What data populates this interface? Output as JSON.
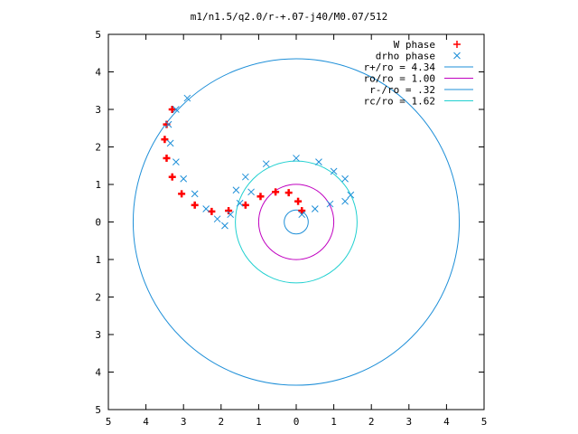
{
  "chart_data": {
    "type": "scatter",
    "title": "m1/n1.5/q2.0/r-+.07-j40/M0.07/512",
    "xlim": [
      -5,
      5
    ],
    "ylim": [
      -5,
      5
    ],
    "xticks": [
      -5,
      -4,
      -3,
      -2,
      -1,
      0,
      1,
      2,
      3,
      4,
      5
    ],
    "yticks": [
      -5,
      -4,
      -3,
      -2,
      -1,
      0,
      1,
      2,
      3,
      4,
      5
    ],
    "xtick_labels": [
      "5",
      "4",
      "3",
      "2",
      "1",
      "0",
      "1",
      "2",
      "3",
      "4",
      "5"
    ],
    "ytick_labels": [
      "5",
      "4",
      "3",
      "2",
      "1",
      "0",
      "1",
      "2",
      "3",
      "4",
      "5"
    ],
    "grid": false,
    "legend_position": "top-right",
    "series": [
      {
        "name": "W phase",
        "marker": "+",
        "color": "#ff0000",
        "points": [
          [
            -3.3,
            3.0
          ],
          [
            -3.45,
            2.6
          ],
          [
            -3.5,
            2.2
          ],
          [
            -3.45,
            1.7
          ],
          [
            -3.3,
            1.2
          ],
          [
            -3.05,
            0.75
          ],
          [
            -2.7,
            0.45
          ],
          [
            -2.25,
            0.28
          ],
          [
            -1.8,
            0.3
          ],
          [
            -1.35,
            0.45
          ],
          [
            -0.95,
            0.68
          ],
          [
            -0.55,
            0.8
          ],
          [
            -0.2,
            0.78
          ],
          [
            0.05,
            0.55
          ],
          [
            0.15,
            0.3
          ]
        ]
      },
      {
        "name": "drho phase",
        "marker": "x",
        "color": "#1e8fd8",
        "points": [
          [
            -2.9,
            3.3
          ],
          [
            -3.2,
            3.0
          ],
          [
            -3.4,
            2.6
          ],
          [
            -3.35,
            2.1
          ],
          [
            -3.2,
            1.6
          ],
          [
            -3.0,
            1.15
          ],
          [
            -2.7,
            0.75
          ],
          [
            -2.4,
            0.35
          ],
          [
            -2.1,
            0.08
          ],
          [
            -1.9,
            -0.1
          ],
          [
            -1.75,
            0.2
          ],
          [
            -1.5,
            0.5
          ],
          [
            -1.2,
            0.8
          ],
          [
            -0.8,
            1.55
          ],
          [
            -1.35,
            1.2
          ],
          [
            -1.6,
            0.85
          ],
          [
            0.0,
            1.7
          ],
          [
            0.6,
            1.6
          ],
          [
            1.0,
            1.35
          ],
          [
            1.3,
            1.15
          ],
          [
            1.45,
            0.72
          ],
          [
            1.3,
            0.55
          ],
          [
            0.9,
            0.48
          ],
          [
            0.5,
            0.35
          ],
          [
            0.15,
            0.2
          ]
        ]
      }
    ],
    "circles": [
      {
        "name": "r+/ro = 4.34",
        "r": 4.34,
        "color": "#1e8fd8"
      },
      {
        "name": "ro/ro = 1.00",
        "r": 1.0,
        "color": "#c000c0"
      },
      {
        "name": "r-/ro = .32",
        "r": 0.32,
        "color": "#1e8fd8"
      },
      {
        "name": "rc/ro = 1.62",
        "r": 1.62,
        "color": "#20d0d0"
      }
    ]
  }
}
